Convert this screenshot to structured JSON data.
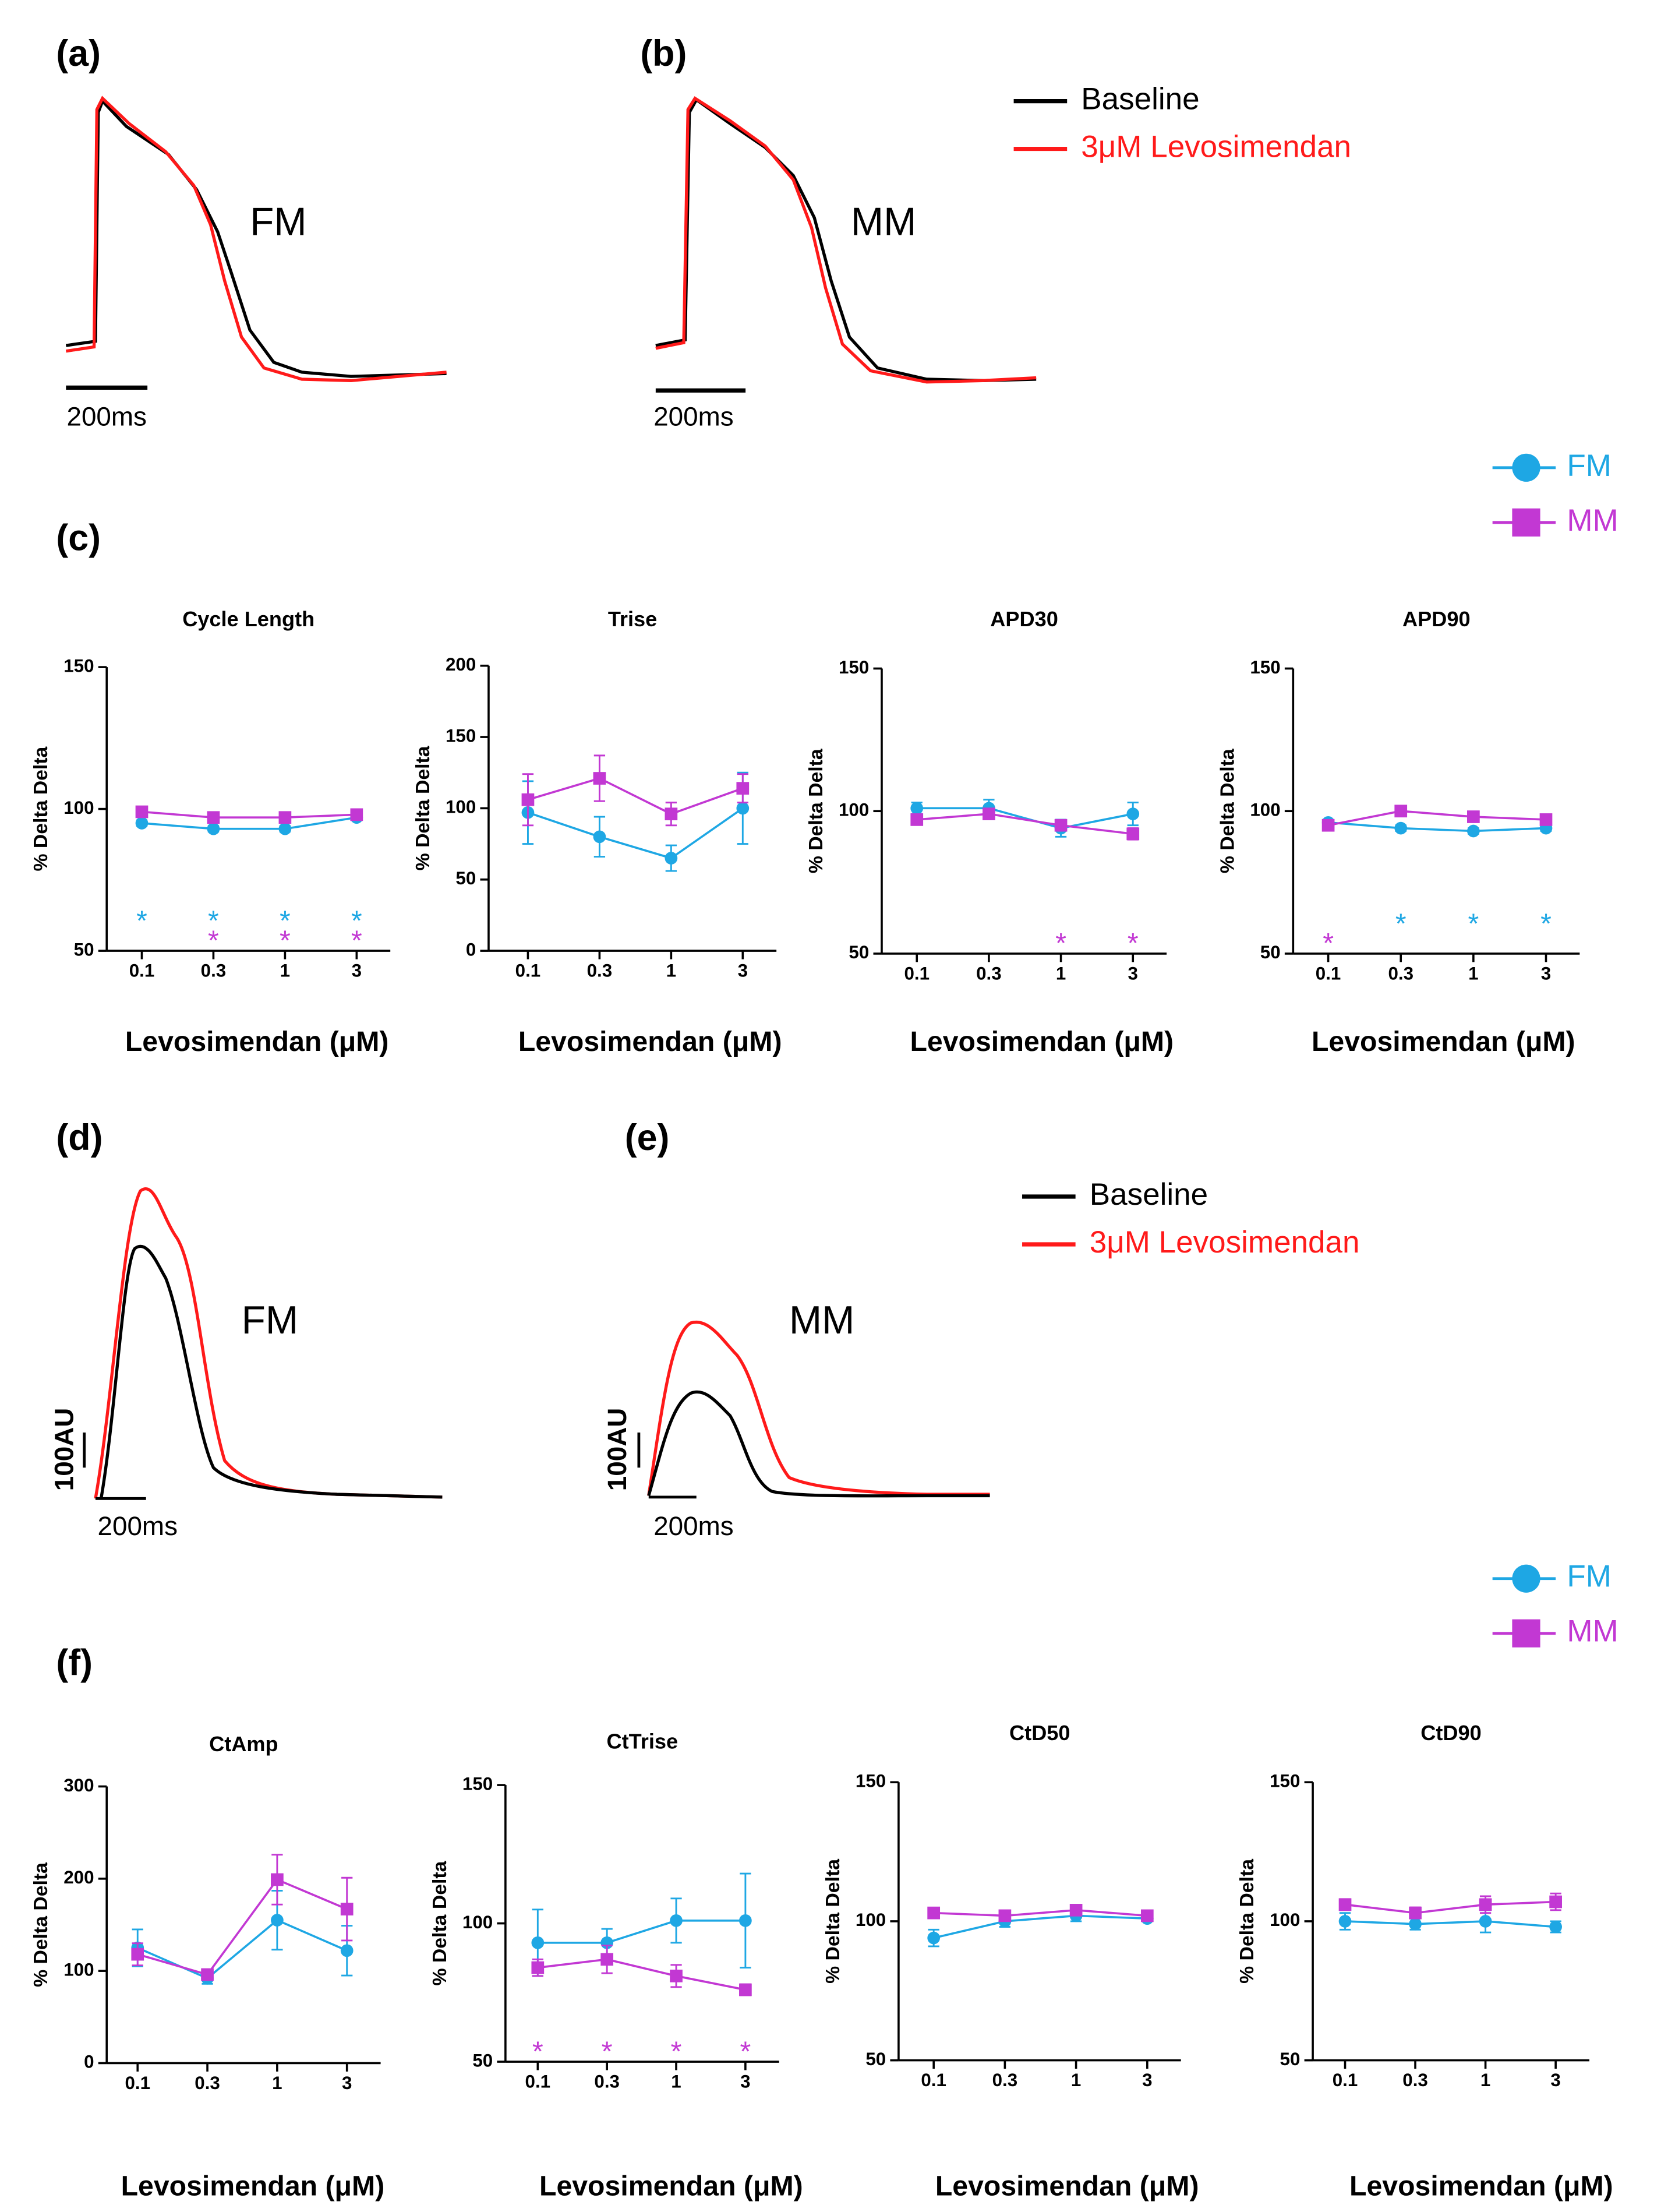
{
  "figure": {
    "panel_labels": [
      "(a)",
      "(b)",
      "(c)",
      "(d)",
      "(e)",
      "(f)"
    ],
    "trace_labels": [
      "FM",
      "MM",
      "FM",
      "MM"
    ],
    "time_scale": "200ms",
    "amplitude_scale": "100AU",
    "trace_legend": [
      {
        "name": "Baseline",
        "color": "#000000"
      },
      {
        "name": "3μM Levosimendan",
        "color": "#ff1a1a"
      }
    ]
  },
  "chart_data": [
    {
      "type": "line",
      "title": "Cycle Length",
      "x_label": "Levosimendan (μM)",
      "y_label": "% Delta Delta",
      "categories": [
        "0.1",
        "0.3",
        "1",
        "3"
      ],
      "ylim": [
        50,
        150
      ],
      "yticks": [
        50,
        100,
        150
      ],
      "series": [
        {
          "name": "FM",
          "color": "#1ea7e4",
          "marker": "circle",
          "values": [
            95,
            93,
            93,
            97
          ],
          "errors": [
            1,
            1,
            1,
            1
          ]
        },
        {
          "name": "MM",
          "color": "#c238d3",
          "marker": "square",
          "values": [
            99,
            97,
            97,
            98
          ],
          "errors": [
            1,
            1,
            1,
            1
          ]
        }
      ],
      "annotations": [
        {
          "text": "*",
          "category": "0.1",
          "series": "FM"
        },
        {
          "text": "*",
          "category": "0.3",
          "series": "FM"
        },
        {
          "text": "*",
          "category": "1",
          "series": "FM"
        },
        {
          "text": "*",
          "category": "3",
          "series": "FM"
        },
        {
          "text": "*",
          "category": "0.3",
          "series": "MM"
        },
        {
          "text": "*",
          "category": "1",
          "series": "MM"
        },
        {
          "text": "*",
          "category": "3",
          "series": "MM"
        }
      ]
    },
    {
      "type": "line",
      "title": "Trise",
      "x_label": "Levosimendan (μM)",
      "y_label": "% Delta Delta",
      "categories": [
        "0.1",
        "0.3",
        "1",
        "3"
      ],
      "ylim": [
        0,
        200
      ],
      "yticks": [
        0,
        50,
        100,
        150,
        200
      ],
      "series": [
        {
          "name": "FM",
          "color": "#1ea7e4",
          "marker": "circle",
          "values": [
            97,
            80,
            65,
            100
          ],
          "errors": [
            22,
            14,
            9,
            25
          ]
        },
        {
          "name": "MM",
          "color": "#c238d3",
          "marker": "square",
          "values": [
            106,
            121,
            96,
            114
          ],
          "errors": [
            18,
            16,
            8,
            10
          ]
        }
      ],
      "annotations": []
    },
    {
      "type": "line",
      "title": "APD30",
      "x_label": "Levosimendan (μM)",
      "y_label": "% Delta Delta",
      "categories": [
        "0.1",
        "0.3",
        "1",
        "3"
      ],
      "ylim": [
        50,
        150
      ],
      "yticks": [
        50,
        100,
        150
      ],
      "series": [
        {
          "name": "FM",
          "color": "#1ea7e4",
          "marker": "circle",
          "values": [
            101,
            101,
            94,
            99
          ],
          "errors": [
            2,
            3,
            3,
            4
          ]
        },
        {
          "name": "MM",
          "color": "#c238d3",
          "marker": "square",
          "values": [
            97,
            99,
            95,
            92
          ],
          "errors": [
            1,
            1,
            1,
            2
          ]
        }
      ],
      "annotations": [
        {
          "text": "*",
          "category": "1",
          "series": "MM"
        },
        {
          "text": "*",
          "category": "3",
          "series": "MM"
        }
      ]
    },
    {
      "type": "line",
      "title": "APD90",
      "x_label": "Levosimendan (μM)",
      "y_label": "% Delta Delta",
      "categories": [
        "0.1",
        "0.3",
        "1",
        "3"
      ],
      "ylim": [
        50,
        150
      ],
      "yticks": [
        50,
        100,
        150
      ],
      "series": [
        {
          "name": "FM",
          "color": "#1ea7e4",
          "marker": "circle",
          "values": [
            96,
            94,
            93,
            94
          ],
          "errors": [
            1,
            1,
            1,
            1
          ]
        },
        {
          "name": "MM",
          "color": "#c238d3",
          "marker": "square",
          "values": [
            95,
            100,
            98,
            97
          ],
          "errors": [
            1,
            1,
            1,
            1
          ]
        }
      ],
      "annotations": [
        {
          "text": "*",
          "category": "0.1",
          "series": "MM"
        },
        {
          "text": "*",
          "category": "0.3",
          "series": "FM"
        },
        {
          "text": "*",
          "category": "1",
          "series": "FM"
        },
        {
          "text": "*",
          "category": "3",
          "series": "FM"
        }
      ]
    },
    {
      "type": "line",
      "title": "CtAmp",
      "x_label": "Levosimendan (μM)",
      "y_label": "% Delta Delta",
      "categories": [
        "0.1",
        "0.3",
        "1",
        "3"
      ],
      "ylim": [
        0,
        300
      ],
      "yticks": [
        0,
        100,
        200,
        300
      ],
      "series": [
        {
          "name": "FM",
          "color": "#1ea7e4",
          "marker": "circle",
          "values": [
            125,
            92,
            155,
            122
          ],
          "errors": [
            20,
            6,
            32,
            27
          ]
        },
        {
          "name": "MM",
          "color": "#c238d3",
          "marker": "square",
          "values": [
            118,
            96,
            199,
            167
          ],
          "errors": [
            12,
            5,
            27,
            34
          ]
        }
      ],
      "annotations": []
    },
    {
      "type": "line",
      "title": "CtTrise",
      "x_label": "Levosimendan (μM)",
      "y_label": "% Delta Delta",
      "categories": [
        "0.1",
        "0.3",
        "1",
        "3"
      ],
      "ylim": [
        50,
        150
      ],
      "yticks": [
        50,
        100,
        150
      ],
      "series": [
        {
          "name": "FM",
          "color": "#1ea7e4",
          "marker": "circle",
          "values": [
            93,
            93,
            101,
            101
          ],
          "errors": [
            12,
            5,
            8,
            17
          ]
        },
        {
          "name": "MM",
          "color": "#c238d3",
          "marker": "square",
          "values": [
            84,
            87,
            81,
            76
          ],
          "errors": [
            3,
            5,
            4,
            2
          ]
        }
      ],
      "annotations": [
        {
          "text": "*",
          "category": "0.1",
          "series": "MM"
        },
        {
          "text": "*",
          "category": "0.3",
          "series": "MM"
        },
        {
          "text": "*",
          "category": "1",
          "series": "MM"
        },
        {
          "text": "*",
          "category": "3",
          "series": "MM"
        }
      ]
    },
    {
      "type": "line",
      "title": "CtD50",
      "x_label": "Levosimendan (μM)",
      "y_label": "% Delta Delta",
      "categories": [
        "0.1",
        "0.3",
        "1",
        "3"
      ],
      "ylim": [
        50,
        150
      ],
      "yticks": [
        50,
        100,
        150
      ],
      "series": [
        {
          "name": "FM",
          "color": "#1ea7e4",
          "marker": "circle",
          "values": [
            94,
            100,
            102,
            101
          ],
          "errors": [
            3,
            2,
            2,
            1
          ]
        },
        {
          "name": "MM",
          "color": "#c238d3",
          "marker": "square",
          "values": [
            103,
            102,
            104,
            102
          ],
          "errors": [
            1,
            1,
            1,
            1
          ]
        }
      ],
      "annotations": []
    },
    {
      "type": "line",
      "title": "CtD90",
      "x_label": "Levosimendan (μM)",
      "y_label": "% Delta Delta",
      "categories": [
        "0.1",
        "0.3",
        "1",
        "3"
      ],
      "ylim": [
        50,
        150
      ],
      "yticks": [
        50,
        100,
        150
      ],
      "series": [
        {
          "name": "FM",
          "color": "#1ea7e4",
          "marker": "circle",
          "values": [
            100,
            99,
            100,
            98
          ],
          "errors": [
            3,
            2,
            4,
            2
          ]
        },
        {
          "name": "MM",
          "color": "#c238d3",
          "marker": "square",
          "values": [
            106,
            103,
            106,
            107
          ],
          "errors": [
            2,
            2,
            3,
            3
          ]
        }
      ],
      "annotations": []
    }
  ]
}
